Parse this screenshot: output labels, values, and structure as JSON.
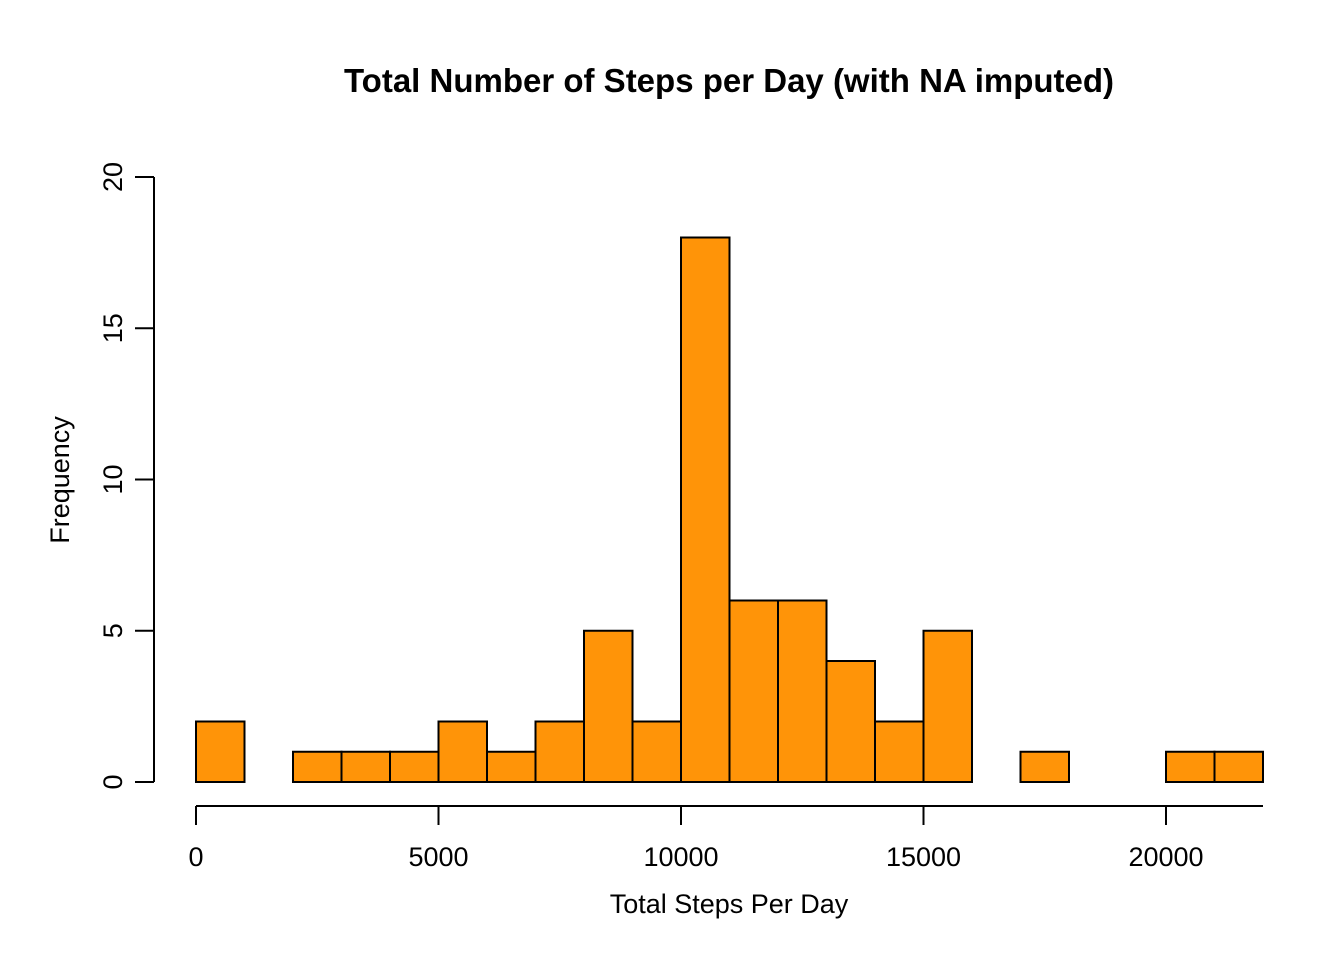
{
  "chart_data": {
    "type": "bar",
    "subtype": "histogram",
    "title": "Total Number of Steps per Day (with NA imputed)",
    "xlabel": "Total Steps Per Day",
    "ylabel": "Frequency",
    "bar_color": "#FF9408",
    "bin_width": 1000,
    "bins": [
      {
        "start": 0,
        "end": 1000,
        "count": 2
      },
      {
        "start": 1000,
        "end": 2000,
        "count": 0
      },
      {
        "start": 2000,
        "end": 3000,
        "count": 1
      },
      {
        "start": 3000,
        "end": 4000,
        "count": 1
      },
      {
        "start": 4000,
        "end": 5000,
        "count": 1
      },
      {
        "start": 5000,
        "end": 6000,
        "count": 2
      },
      {
        "start": 6000,
        "end": 7000,
        "count": 1
      },
      {
        "start": 7000,
        "end": 8000,
        "count": 2
      },
      {
        "start": 8000,
        "end": 9000,
        "count": 5
      },
      {
        "start": 9000,
        "end": 10000,
        "count": 2
      },
      {
        "start": 10000,
        "end": 11000,
        "count": 18
      },
      {
        "start": 11000,
        "end": 12000,
        "count": 6
      },
      {
        "start": 12000,
        "end": 13000,
        "count": 6
      },
      {
        "start": 13000,
        "end": 14000,
        "count": 4
      },
      {
        "start": 14000,
        "end": 15000,
        "count": 2
      },
      {
        "start": 15000,
        "end": 16000,
        "count": 5
      },
      {
        "start": 16000,
        "end": 17000,
        "count": 0
      },
      {
        "start": 17000,
        "end": 18000,
        "count": 1
      },
      {
        "start": 18000,
        "end": 19000,
        "count": 0
      },
      {
        "start": 19000,
        "end": 20000,
        "count": 0
      },
      {
        "start": 20000,
        "end": 21000,
        "count": 1
      },
      {
        "start": 21000,
        "end": 22000,
        "count": 1
      }
    ],
    "xlim": [
      0,
      22000
    ],
    "ylim": [
      0,
      20
    ],
    "x_ticks": [
      0,
      5000,
      10000,
      15000,
      20000
    ],
    "y_ticks": [
      0,
      5,
      10,
      15,
      20
    ],
    "x_tick_labels": [
      "0",
      "5000",
      "10000",
      "15000",
      "20000"
    ],
    "y_tick_labels": [
      "0",
      "5",
      "10",
      "15",
      "20"
    ],
    "grid": false,
    "legend": "none"
  }
}
